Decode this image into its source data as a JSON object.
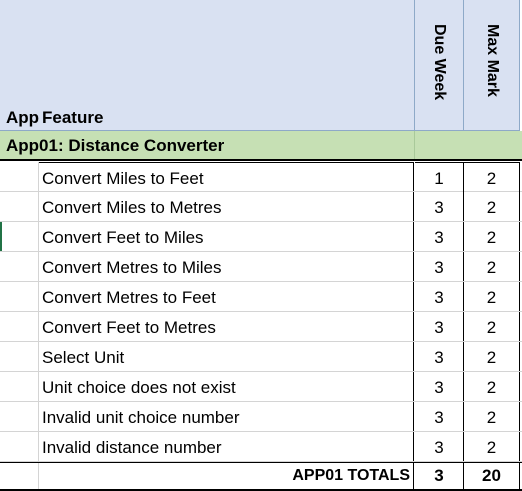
{
  "header": {
    "app_label": "App",
    "feature_label": "Feature",
    "due_week_label": "Due Week",
    "max_mark_label": "Max Mark"
  },
  "section": {
    "title": "App01: Distance Converter"
  },
  "rows": [
    {
      "feature": "Convert Miles to Feet",
      "due_week": "1",
      "max_mark": "2"
    },
    {
      "feature": "Convert Miles to Metres",
      "due_week": "3",
      "max_mark": "2"
    },
    {
      "feature": "Convert Feet to Miles",
      "due_week": "3",
      "max_mark": "2"
    },
    {
      "feature": "Convert Metres to Miles",
      "due_week": "3",
      "max_mark": "2"
    },
    {
      "feature": "Convert Metres to Feet",
      "due_week": "3",
      "max_mark": "2"
    },
    {
      "feature": "Convert Feet to Metres",
      "due_week": "3",
      "max_mark": "2"
    },
    {
      "feature": "Select Unit",
      "due_week": "3",
      "max_mark": "2"
    },
    {
      "feature": "Unit choice does not exist",
      "due_week": "3",
      "max_mark": "2"
    },
    {
      "feature": "Invalid unit choice number",
      "due_week": "3",
      "max_mark": "2"
    },
    {
      "feature": "Invalid distance number",
      "due_week": "3",
      "max_mark": "2"
    }
  ],
  "totals": {
    "label": "APP01 TOTALS",
    "due_week": "3",
    "max_mark": "20"
  },
  "colors": {
    "header_fill": "#d9e1f2",
    "section_fill": "#c6e0b4",
    "selection_accent": "#217346"
  }
}
